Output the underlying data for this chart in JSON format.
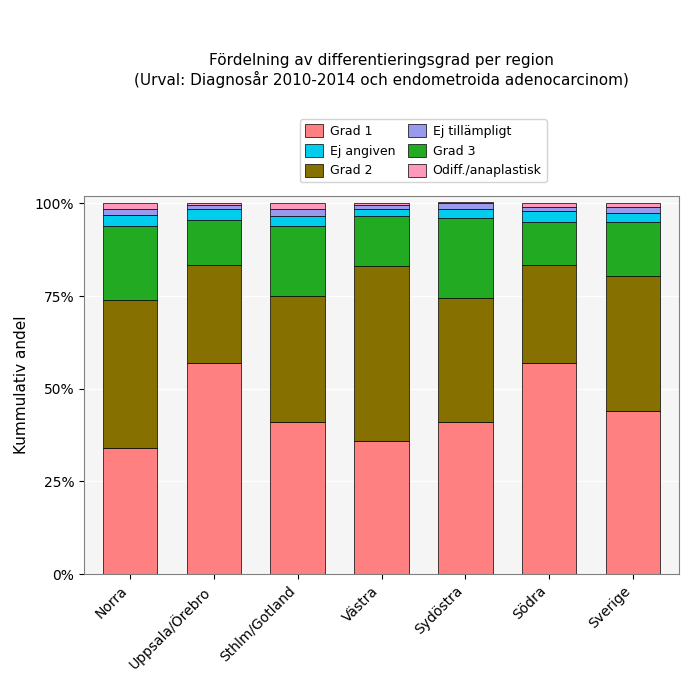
{
  "categories": [
    "Norra",
    "Uppsala/Örebro",
    "Sthlm/Gotland",
    "Västra",
    "Sydöstra",
    "Södra",
    "Sverige"
  ],
  "grad1": [
    0.34,
    0.57,
    0.41,
    0.36,
    0.41,
    0.57,
    0.44
  ],
  "grad2": [
    0.4,
    0.265,
    0.34,
    0.47,
    0.335,
    0.265,
    0.365
  ],
  "grad3": [
    0.2,
    0.12,
    0.19,
    0.135,
    0.215,
    0.115,
    0.145
  ],
  "ej_angiven": [
    0.03,
    0.03,
    0.025,
    0.02,
    0.025,
    0.03,
    0.025
  ],
  "ej_tillampligt": [
    0.015,
    0.01,
    0.02,
    0.01,
    0.015,
    0.01,
    0.015
  ],
  "odiff": [
    0.015,
    0.005,
    0.015,
    0.005,
    0.005,
    0.01,
    0.01
  ],
  "color_grad1": "#FF8080",
  "color_grad2": "#857000",
  "color_grad3": "#22AA22",
  "color_ej_angiven": "#00CCEE",
  "color_ej_tillampligt": "#9999EE",
  "color_odiff": "#FF99BB",
  "title_line1": "Fördelning av differentieringsgrad per region",
  "title_line2": "(Urval: Diagnosår 2010-2014 och endometroida adenocarcinom)",
  "ylabel": "Kummulativ andel",
  "yticks": [
    0,
    0.25,
    0.5,
    0.75,
    1.0
  ],
  "yticklabels": [
    "0%",
    "25%",
    "50%",
    "75%",
    "100%"
  ],
  "legend_labels": [
    "Grad 1",
    "Grad 2",
    "Grad 3",
    "Ej angiven",
    "Ej tillämpligt",
    "Odiff./anaplastisk"
  ],
  "bar_width": 0.65,
  "background_color": "#FFFFFF",
  "plot_bg_color": "#F5F5F5"
}
